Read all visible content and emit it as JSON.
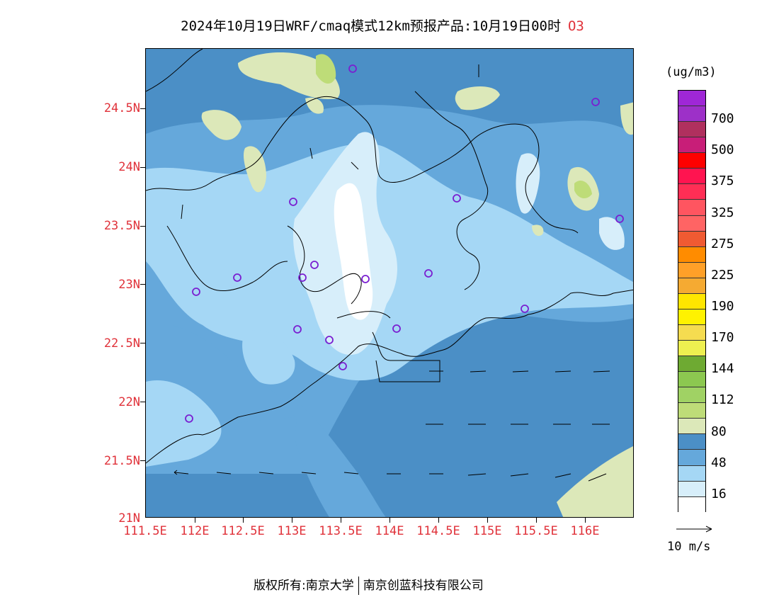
{
  "title": {
    "main": "2024年10月19日WRF/cmaq模式12km预报产品:10月19日00时",
    "species": "O3"
  },
  "axes": {
    "lat_labels": [
      "24.5N",
      "24N",
      "23.5N",
      "23N",
      "22.5N",
      "22N",
      "21.5N",
      "21N"
    ],
    "lon_labels": [
      "111.5E",
      "112E",
      "112.5E",
      "113E",
      "113.5E",
      "114E",
      "114.5E",
      "115E",
      "115.5E",
      "116E"
    ]
  },
  "legend": {
    "unit": "(ug/m3)",
    "levels": [
      {
        "color": "#9f27d6"
      },
      {
        "color": "#9d30c8",
        "label": "700"
      },
      {
        "color": "#b0305e"
      },
      {
        "color": "#c81e78",
        "label": "500"
      },
      {
        "color": "#ff0000"
      },
      {
        "color": "#ff1450",
        "label": "375"
      },
      {
        "color": "#ff2e55"
      },
      {
        "color": "#ff5560",
        "label": "325"
      },
      {
        "color": "#ff6464"
      },
      {
        "color": "#f05a32",
        "label": "275"
      },
      {
        "color": "#ff8c00"
      },
      {
        "color": "#ffa028",
        "label": "225"
      },
      {
        "color": "#f5aa32"
      },
      {
        "color": "#ffe600",
        "label": "190"
      },
      {
        "color": "#fff200"
      },
      {
        "color": "#f5dc50",
        "label": "170"
      },
      {
        "color": "#eef050"
      },
      {
        "color": "#6eaa32",
        "label": "144"
      },
      {
        "color": "#8cc850"
      },
      {
        "color": "#a0d264",
        "label": "112"
      },
      {
        "color": "#bedc78"
      },
      {
        "color": "#dce8b9",
        "label": "80"
      },
      {
        "color": "#4b8fc6"
      },
      {
        "color": "#65a8db",
        "label": "48"
      },
      {
        "color": "#a5d7f5"
      },
      {
        "color": "#d7eefa",
        "label": "16"
      },
      {
        "color": "#ffffff"
      }
    ]
  },
  "wind_key": {
    "label": "10 m/s"
  },
  "footer": {
    "left": "版权所有:南京大学",
    "right": "南京创蓝科技有限公司"
  },
  "colors": {
    "label_red": "#e0323a",
    "station_marker": "#7a1fd1",
    "land_low": "#dce8b9"
  }
}
